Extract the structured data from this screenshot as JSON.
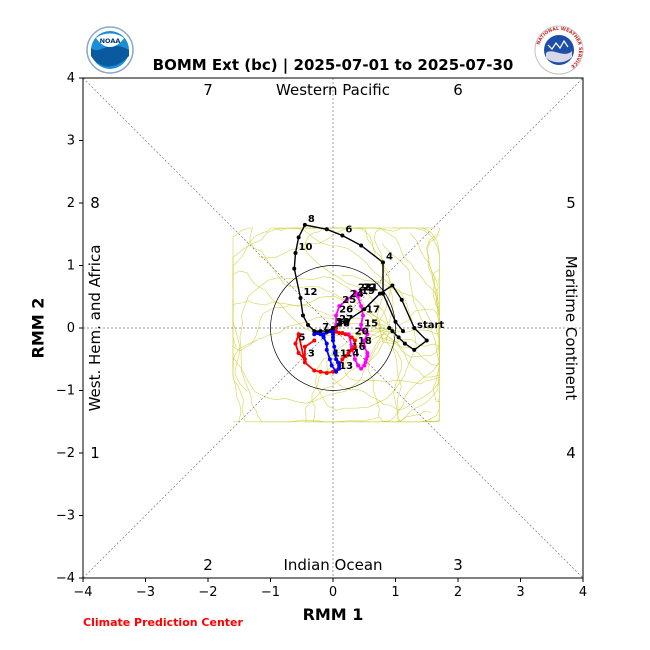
{
  "header": {
    "title": "BOMM Ext (bc) | 2025-07-01 to 2025-07-30",
    "left_logo_text": "NOAA",
    "right_logo_text": "NATIONAL WEATHER SERVICE",
    "credit": "Climate Prediction Center"
  },
  "colors": {
    "observed": "#000000",
    "ensemble_mean_a": "#ff00ff",
    "ensemble_mean_b": "#ff0000",
    "ensemble_mean_c": "#0000ff",
    "ensemble_members": "#cccc33",
    "credit": "#ff0000"
  },
  "chart_data": {
    "type": "line",
    "xlabel": "RMM 1",
    "ylabel": "RMM 2",
    "xlim": [
      -4,
      4
    ],
    "ylim": [
      -4,
      4
    ],
    "xticks": [
      "−4",
      "−3",
      "−2",
      "−1",
      "0",
      "1",
      "2",
      "3",
      "4"
    ],
    "yticks": [
      "−4",
      "−3",
      "−2",
      "−1",
      "0",
      "1",
      "2",
      "3",
      "4"
    ],
    "regions": {
      "top": "Western Pacific",
      "bottom": "Indian Ocean",
      "left": "West. Hem. and Africa",
      "right": "Maritime Continent"
    },
    "phases": [
      "1",
      "2",
      "3",
      "4",
      "5",
      "6",
      "7",
      "8"
    ],
    "unit_circle_radius": 1,
    "start_label": "start",
    "series": [
      {
        "label_style": "observed",
        "days": [
          "",
          "",
          "",
          "4",
          "",
          "6",
          "",
          "8",
          "",
          "10",
          "",
          "12",
          "",
          "",
          "",
          "",
          "",
          "",
          "",
          "",
          "",
          "",
          "",
          "",
          "",
          "",
          "",
          "",
          "",
          ""
        ],
        "x": [
          1.12,
          1.0,
          0.8,
          0.8,
          0.45,
          0.15,
          -0.1,
          -0.45,
          -0.55,
          -0.6,
          -0.62,
          -0.52,
          -0.48,
          -0.4,
          -0.3,
          -0.2,
          -0.1,
          0.0,
          0.2,
          0.5,
          0.75,
          0.95,
          1.1,
          1.3,
          1.5,
          1.3,
          1.15,
          1.05,
          0.95,
          0.9
        ],
        "y": [
          -0.05,
          0.1,
          0.55,
          1.05,
          1.32,
          1.48,
          1.58,
          1.65,
          1.45,
          1.2,
          0.95,
          0.48,
          0.2,
          0.05,
          -0.05,
          -0.05,
          -0.05,
          0.0,
          0.1,
          0.3,
          0.55,
          0.68,
          0.45,
          0.0,
          -0.2,
          -0.35,
          -0.25,
          -0.15,
          -0.05,
          0.0
        ]
      },
      {
        "label_style": "ensemble-mean-a",
        "days": [
          "",
          "",
          "",
          "",
          "",
          "",
          "",
          "",
          "",
          "",
          "",
          "",
          "",
          "",
          "15",
          "",
          "17",
          "",
          "19",
          "",
          "21",
          "22",
          "23",
          "24",
          "25",
          "26",
          "27",
          "",
          "",
          "30"
        ],
        "x": [
          0.25,
          0.3,
          0.35,
          0.4,
          0.45,
          0.5,
          0.52,
          0.53,
          0.55,
          0.55,
          0.5,
          0.5,
          0.55,
          0.5,
          0.45,
          0.45,
          0.48,
          0.45,
          0.4,
          0.35,
          0.45,
          0.42,
          0.35,
          0.22,
          0.1,
          0.05,
          0.05,
          0.0,
          0.0,
          0.0
        ],
        "y": [
          -0.1,
          -0.3,
          -0.5,
          -0.6,
          -0.65,
          -0.6,
          -0.55,
          -0.5,
          -0.45,
          -0.4,
          -0.3,
          -0.2,
          -0.1,
          -0.05,
          -0.02,
          0.05,
          0.2,
          0.35,
          0.5,
          0.58,
          0.55,
          0.55,
          0.55,
          0.45,
          0.35,
          0.2,
          0.05,
          -0.05,
          -0.05,
          0.0
        ]
      },
      {
        "label_style": "ensemble-mean-b",
        "days": [
          "",
          "",
          "3",
          "",
          "5",
          "",
          "",
          "",
          "",
          "",
          "",
          "",
          "",
          "14",
          "",
          "16",
          "",
          "18",
          "",
          "20",
          "",
          "",
          "",
          "",
          "",
          "",
          "",
          "28",
          "29",
          ""
        ],
        "x": [
          -0.3,
          -0.45,
          -0.45,
          -0.55,
          -0.6,
          -0.55,
          -0.45,
          -0.3,
          -0.2,
          -0.1,
          0.0,
          0.05,
          0.1,
          0.15,
          0.2,
          0.25,
          0.3,
          0.35,
          0.35,
          0.3,
          0.2,
          0.15,
          0.1,
          0.05,
          0.0,
          -0.05,
          -0.05,
          0.0,
          0.0,
          0.05
        ],
        "y": [
          -0.2,
          -0.3,
          -0.5,
          -0.4,
          -0.25,
          -0.1,
          -0.55,
          -0.68,
          -0.7,
          -0.72,
          -0.7,
          -0.68,
          -0.6,
          -0.5,
          -0.45,
          -0.4,
          -0.35,
          -0.3,
          -0.2,
          -0.15,
          -0.1,
          -0.08,
          -0.08,
          -0.06,
          -0.05,
          -0.05,
          -0.05,
          -0.02,
          0.0,
          0.0
        ]
      },
      {
        "label_style": "ensemble-mean-c",
        "days": [
          "",
          "",
          "",
          "",
          "",
          "",
          "7",
          "",
          "",
          "",
          "11",
          "",
          "13",
          "",
          "",
          "",
          "",
          "",
          "",
          "",
          "",
          "",
          "",
          "",
          "",
          "",
          "",
          "",
          "",
          ""
        ],
        "x": [
          -0.05,
          -0.1,
          -0.15,
          -0.2,
          -0.25,
          -0.3,
          -0.22,
          -0.15,
          -0.1,
          -0.1,
          -0.05,
          -0.02,
          0.05,
          0.1,
          0.1,
          0.08,
          0.05,
          0.03,
          0.02,
          0.0,
          0.0,
          0.0,
          0.0,
          0.0,
          0.0,
          0.0,
          0.0,
          0.0,
          0.0,
          0.0
        ],
        "y": [
          -0.05,
          -0.07,
          -0.1,
          -0.1,
          -0.08,
          -0.1,
          -0.08,
          -0.15,
          -0.25,
          -0.35,
          -0.5,
          -0.6,
          -0.7,
          -0.65,
          -0.6,
          -0.55,
          -0.5,
          -0.4,
          -0.3,
          -0.2,
          -0.15,
          -0.1,
          -0.05,
          -0.03,
          0.0,
          0.0,
          0.0,
          0.0,
          0.0,
          0.0
        ]
      }
    ],
    "member_count": 25,
    "grid": "dashed diagonals and center axes",
    "legend": "none"
  }
}
